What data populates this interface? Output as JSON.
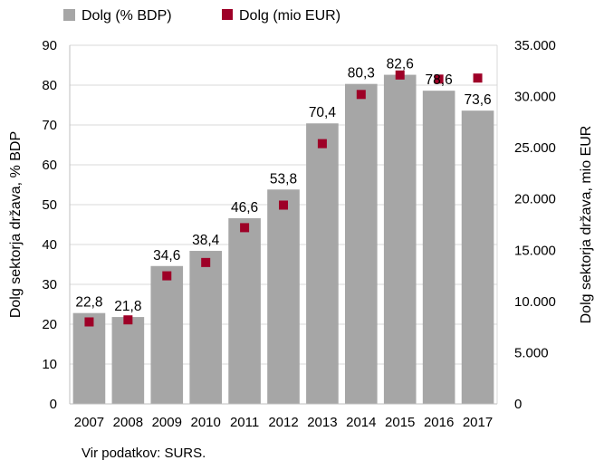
{
  "chart_data": {
    "type": "bar",
    "categories": [
      "2007",
      "2008",
      "2009",
      "2010",
      "2011",
      "2012",
      "2013",
      "2014",
      "2015",
      "2016",
      "2017"
    ],
    "series": [
      {
        "name": "Dolg (% BDP)",
        "kind": "bar",
        "axis": "left",
        "color": "#a6a6a6",
        "values": [
          22.8,
          21.8,
          34.6,
          38.4,
          46.6,
          53.8,
          70.4,
          80.3,
          82.6,
          78.6,
          73.6
        ],
        "labels": [
          "22,8",
          "21,8",
          "34,6",
          "38,4",
          "46,6",
          "53,8",
          "70,4",
          "80,3",
          "82,6",
          "78,6",
          "73,6"
        ]
      },
      {
        "name": "Dolg (mio EUR)",
        "kind": "marker",
        "axis": "right",
        "color": "#9e0027",
        "values": [
          8000,
          8200,
          12500,
          13800,
          17200,
          19400,
          25400,
          30200,
          32100,
          31700,
          31800
        ]
      }
    ],
    "ylabel_left": "Dolg sektorja država, % BDP",
    "ylabel_right": "Dolg sektorja država, mio EUR",
    "ylim_left": [
      0,
      90
    ],
    "ylim_right": [
      0,
      35000
    ],
    "yticks_left": [
      "0",
      "10",
      "20",
      "30",
      "40",
      "50",
      "60",
      "70",
      "80",
      "90"
    ],
    "yticks_right": [
      "0",
      "5.000",
      "10.000",
      "15.000",
      "20.000",
      "25.000",
      "30.000",
      "35.000"
    ],
    "grid": true,
    "legend_position": "top-left"
  },
  "source": "Vir podatkov: SURS."
}
